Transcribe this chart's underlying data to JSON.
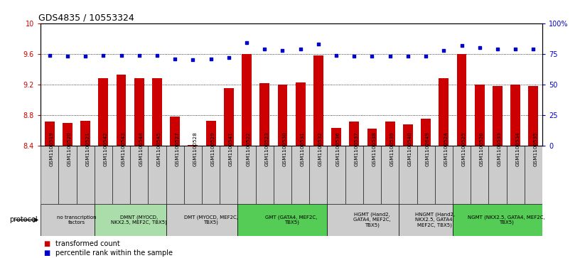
{
  "title": "GDS4835 / 10553324",
  "samples": [
    "GSM1100519",
    "GSM1100520",
    "GSM1100521",
    "GSM1100542",
    "GSM1100543",
    "GSM1100544",
    "GSM1100545",
    "GSM1100527",
    "GSM1100528",
    "GSM1100529",
    "GSM1100541",
    "GSM1100522",
    "GSM1100523",
    "GSM1100530",
    "GSM1100531",
    "GSM1100532",
    "GSM1100536",
    "GSM1100537",
    "GSM1100538",
    "GSM1100539",
    "GSM1100540",
    "GSM1102649",
    "GSM1100524",
    "GSM1100525",
    "GSM1100526",
    "GSM1100533",
    "GSM1100534",
    "GSM1100535"
  ],
  "red_values": [
    8.72,
    8.7,
    8.73,
    9.28,
    9.33,
    9.28,
    9.28,
    8.78,
    8.41,
    8.73,
    9.15,
    9.6,
    9.22,
    9.2,
    9.23,
    9.58,
    8.63,
    8.72,
    8.62,
    8.72,
    8.68,
    8.75,
    9.28,
    9.6,
    9.2,
    9.18,
    9.2,
    9.18
  ],
  "blue_values": [
    74,
    73,
    73,
    74,
    74,
    74,
    74,
    71,
    70,
    71,
    72,
    84,
    79,
    78,
    79,
    83,
    74,
    73,
    73,
    73,
    73,
    73,
    78,
    82,
    80,
    79,
    79,
    79
  ],
  "ylim_left": [
    8.4,
    10.0
  ],
  "ylim_right": [
    0,
    100
  ],
  "yticks_left": [
    8.4,
    8.8,
    9.2,
    9.6,
    10.0
  ],
  "yticks_right": [
    0,
    25,
    50,
    75,
    100
  ],
  "ytick_labels_left": [
    "8.4",
    "8.8",
    "9.2",
    "9.6",
    "10"
  ],
  "ytick_labels_right": [
    "0",
    "25",
    "50",
    "75",
    "100%"
  ],
  "bar_color": "#cc0000",
  "dot_color": "#0000cc",
  "protocol_groups": [
    {
      "label": "no transcription\nfactors",
      "start": 0,
      "end": 3,
      "color": "#cccccc"
    },
    {
      "label": "DMNT (MYOCD,\nNKX2.5, MEF2C, TBX5)",
      "start": 3,
      "end": 7,
      "color": "#aaddaa"
    },
    {
      "label": "DMT (MYOCD, MEF2C,\nTBX5)",
      "start": 7,
      "end": 11,
      "color": "#cccccc"
    },
    {
      "label": "GMT (GATA4, MEF2C,\nTBX5)",
      "start": 11,
      "end": 16,
      "color": "#55cc55"
    },
    {
      "label": "HGMT (Hand2,\nGATA4, MEF2C,\nTBX5)",
      "start": 16,
      "end": 20,
      "color": "#cccccc"
    },
    {
      "label": "HNGMT (Hand2,\nNKX2.5, GATA4,\nMEF2C, TBX5)",
      "start": 20,
      "end": 23,
      "color": "#cccccc"
    },
    {
      "label": "NGMT (NKX2.5, GATA4, MEF2C,\nTBX5)",
      "start": 23,
      "end": 28,
      "color": "#55cc55"
    }
  ],
  "sample_bg_color": "#cccccc",
  "legend_red": "transformed count",
  "legend_blue": "percentile rank within the sample",
  "bar_width": 0.55
}
